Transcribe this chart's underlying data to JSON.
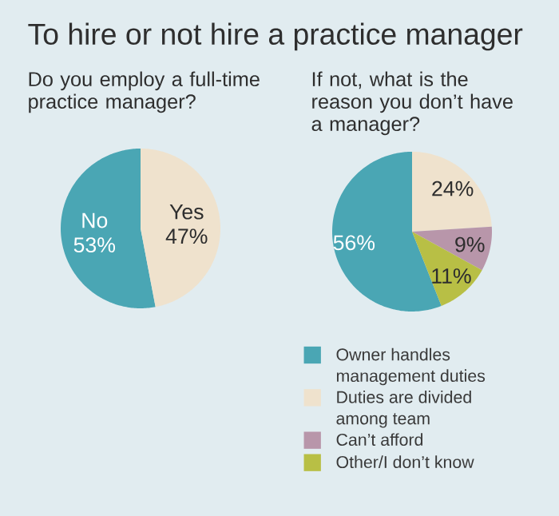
{
  "chart_data": [
    {
      "type": "pie",
      "title": "To hire or not hire a practice manager",
      "subtitle": "Do you employ a full-time practice manager?",
      "categories": [
        "No",
        "Yes"
      ],
      "values": [
        53,
        47
      ],
      "colors": [
        "#4aa6b4",
        "#efe2cd"
      ],
      "value_labels": [
        "53%",
        "47%"
      ],
      "legend": false
    },
    {
      "type": "pie",
      "subtitle": "If not, what is the reason you don’t have a manager?",
      "categories": [
        "Owner handles management duties",
        "Duties are divided among team",
        "Can’t afford",
        "Other/I don’t know"
      ],
      "values": [
        56,
        24,
        9,
        11
      ],
      "colors": [
        "#4aa6b4",
        "#efe2cd",
        "#b896aa",
        "#b8bf45"
      ],
      "value_labels": [
        "56%",
        "24%",
        "9%",
        "11%"
      ],
      "legend": "bottom"
    }
  ]
}
